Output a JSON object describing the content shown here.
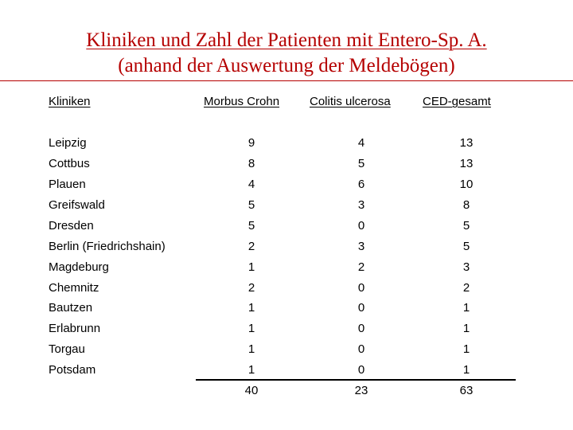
{
  "title": {
    "line1": "Kliniken und Zahl der Patienten mit Entero-Sp. A.",
    "line2": "(anhand der Auswertung der Meldebögen)"
  },
  "table": {
    "headers": [
      "Kliniken",
      "Morbus Crohn",
      "Colitis ulcerosa",
      "CED-gesamt"
    ],
    "rows": [
      {
        "klinik": "Leipzig",
        "morbus_crohn": "9",
        "colitis_ulcerosa": "4",
        "ced_gesamt": "13"
      },
      {
        "klinik": "Cottbus",
        "morbus_crohn": "8",
        "colitis_ulcerosa": "5",
        "ced_gesamt": "13"
      },
      {
        "klinik": "Plauen",
        "morbus_crohn": "4",
        "colitis_ulcerosa": "6",
        "ced_gesamt": "10"
      },
      {
        "klinik": "Greifswald",
        "morbus_crohn": "5",
        "colitis_ulcerosa": "3",
        "ced_gesamt": "8"
      },
      {
        "klinik": "Dresden",
        "morbus_crohn": "5",
        "colitis_ulcerosa": "0",
        "ced_gesamt": "5"
      },
      {
        "klinik": "Berlin (Friedrichshain)",
        "morbus_crohn": "2",
        "colitis_ulcerosa": "3",
        "ced_gesamt": "5"
      },
      {
        "klinik": "Magdeburg",
        "morbus_crohn": "1",
        "colitis_ulcerosa": "2",
        "ced_gesamt": "3"
      },
      {
        "klinik": "Chemnitz",
        "morbus_crohn": "2",
        "colitis_ulcerosa": "0",
        "ced_gesamt": "2"
      },
      {
        "klinik": "Bautzen",
        "morbus_crohn": "1",
        "colitis_ulcerosa": "0",
        "ced_gesamt": "1"
      },
      {
        "klinik": "Erlabrunn",
        "morbus_crohn": "1",
        "colitis_ulcerosa": "0",
        "ced_gesamt": "1"
      },
      {
        "klinik": "Torgau",
        "morbus_crohn": "1",
        "colitis_ulcerosa": "0",
        "ced_gesamt": "1"
      },
      {
        "klinik": "Potsdam",
        "morbus_crohn": "1",
        "colitis_ulcerosa": "0",
        "ced_gesamt": "1"
      }
    ],
    "totals": {
      "morbus_crohn": "40",
      "colitis_ulcerosa": "23",
      "ced_gesamt": "63"
    }
  },
  "colors": {
    "title": "#b50000",
    "text": "#000000"
  }
}
